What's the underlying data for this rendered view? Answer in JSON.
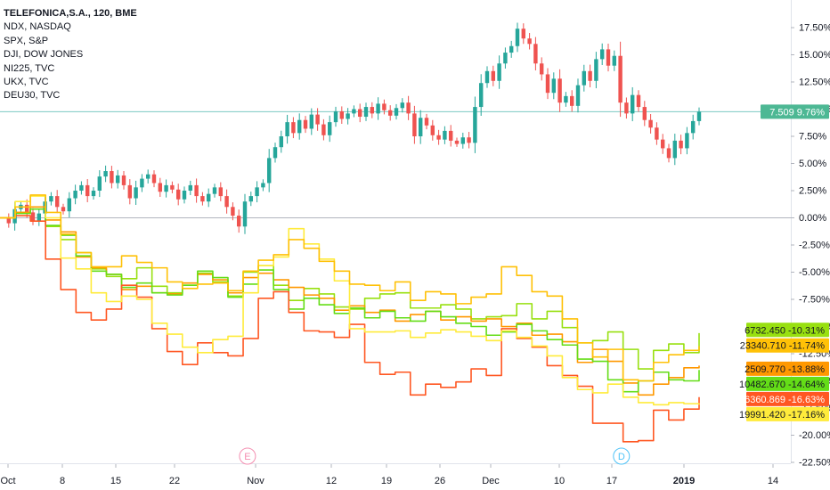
{
  "legend": {
    "title": "TELEFONICA,S.A., 120, BME",
    "items": [
      "NDX, NASDAQ",
      "SPX, S&P",
      "DJI, DOW JONES",
      "NI225, TVC",
      "UKX, TVC",
      "DEU30, TVC"
    ]
  },
  "markers": {
    "earnings": "E",
    "dividend": "D"
  },
  "colors": {
    "up": "#26a69a",
    "down": "#ef5350",
    "ndx": "#98e010",
    "spx": "#ff9800",
    "dji": "#64dd17",
    "ni225": "#ff5722",
    "ukx": "#ffeb3b",
    "deu30": "#ffc107",
    "last_line": "#26a69a",
    "zero_line": "#b2b5be"
  },
  "chart_data": {
    "type": "line",
    "x_ticks": [
      "Oct",
      "8",
      "15",
      "22",
      "Nov",
      "12",
      "19",
      "26",
      "Dec",
      "10",
      "17",
      "2019",
      "14"
    ],
    "x_tick_days": [
      0,
      7,
      14,
      21,
      31,
      42,
      49,
      56,
      61,
      70,
      77,
      92,
      105
    ],
    "y_ticks": [
      "17.50%",
      "15.00%",
      "12.50%",
      "10.00%",
      "7.50%",
      "5.00%",
      "2.50%",
      "0.00%",
      "-2.50%",
      "-5.00%",
      "-7.50%",
      "-10.00%",
      "-12.50%",
      "-15.00%",
      "-17.50%",
      "-20.00%",
      "-22.50%"
    ],
    "ylim": [
      -23.5,
      19.5
    ],
    "xlim": [
      0,
      108
    ],
    "last_value_label": {
      "price": "7.509",
      "pct": "9.76%",
      "value": 9.76
    },
    "candles": {
      "name": "TELEFONICA,S.A.",
      "x_start": 0,
      "x_end": 94,
      "closes": [
        0,
        -0.5,
        0.8,
        1.2,
        0.5,
        -0.3,
        0.4,
        1.5,
        2.0,
        1.0,
        0.6,
        1.8,
        2.5,
        3.0,
        2.0,
        2.5,
        3.8,
        4.3,
        3.2,
        3.9,
        3.0,
        1.8,
        2.8,
        3.6,
        4.0,
        3.2,
        2.4,
        3.0,
        2.6,
        1.7,
        2.5,
        3.0,
        2.0,
        1.5,
        2.2,
        2.8,
        2.0,
        1.0,
        0.2,
        -0.8,
        1.5,
        2.0,
        2.8,
        3.2,
        5.5,
        6.5,
        7.5,
        8.8,
        7.8,
        9.0,
        8.2,
        9.5,
        8.6,
        7.6,
        8.8,
        9.8,
        9.1,
        9.6,
        10.0,
        9.3,
        10.2,
        9.6,
        10.5,
        9.9,
        9.4,
        10.1,
        10.6,
        9.6,
        7.5,
        9.2,
        8.5,
        7.6,
        7.2,
        8.0,
        7.1,
        6.8,
        7.4,
        6.9,
        10.2,
        12.4,
        13.5,
        12.6,
        14.2,
        15.2,
        15.8,
        17.4,
        16.5,
        16.0,
        14.2,
        13.2,
        11.5,
        12.8,
        10.6,
        11.2,
        10.3,
        12.2,
        13.5,
        12.6,
        14.6,
        15.5,
        14.0,
        14.9,
        10.6,
        9.6,
        11.3,
        10.2,
        9.0,
        8.3,
        7.2,
        6.4,
        5.5,
        7.1,
        6.4,
        7.8,
        8.9,
        9.76
      ]
    },
    "series": [
      {
        "name": "NDX, NASDAQ",
        "key": "ndx",
        "last_value": "6732.450",
        "last_pct": "-10.31%",
        "pct": -10.31,
        "values": [
          0,
          0.5,
          1,
          -0.8,
          -2,
          -3.2,
          -4.7,
          -5.4,
          -5.6,
          -4.6,
          -6.3,
          -6.9,
          -6.2,
          -5.1,
          -5.9,
          -7.2,
          -5.0,
          -4.4,
          -6.2,
          -7.6,
          -6.5,
          -7.0,
          -8.2,
          -8.4,
          -7.4,
          -7.0,
          -6.9,
          -8.3,
          -8.3,
          -8.0,
          -8.4,
          -9.3,
          -9.1,
          -9.0,
          -7.9,
          -9.3,
          -8.6,
          -10.1,
          -11.5,
          -11.3,
          -10.5,
          -12.1,
          -13.9,
          -12.2,
          -11.6,
          -12.4,
          -10.6
        ]
      },
      {
        "name": "SPX, S&P",
        "key": "spx",
        "last_value": "2509.770",
        "last_pct": "-13.88%",
        "pct": -13.88,
        "values": [
          0,
          0.5,
          1,
          -0.2,
          -1.3,
          -3.6,
          -4.6,
          -5.2,
          -6.6,
          -6.3,
          -6.9,
          -7.0,
          -6.0,
          -5.2,
          -5.7,
          -6.9,
          -5.5,
          -5.1,
          -5.7,
          -6.4,
          -7.1,
          -7.4,
          -8.5,
          -8.1,
          -8.7,
          -8.5,
          -9.5,
          -8.9,
          -8.6,
          -9.4,
          -9.1,
          -9.5,
          -9.3,
          -10.0,
          -9.7,
          -10.8,
          -10.7,
          -11.4,
          -13.3,
          -12.1,
          -13.2,
          -15.2,
          -16.3,
          -15.3,
          -14.7,
          -13.8,
          -13.6
        ]
      },
      {
        "name": "DJI, DOW JONES",
        "key": "dji",
        "last_value": "10482.670",
        "last_pct": "-14.64%",
        "pct": -14.64,
        "values": [
          0,
          0.4,
          0.8,
          -0.7,
          -1.6,
          -3.5,
          -4.9,
          -5.2,
          -6.4,
          -6.0,
          -6.9,
          -7.1,
          -6.2,
          -4.9,
          -5.5,
          -7.3,
          -6.1,
          -4.8,
          -6.6,
          -8.4,
          -7.4,
          -8.0,
          -8.8,
          -8.3,
          -9.2,
          -8.6,
          -9.2,
          -9.5,
          -8.6,
          -9.1,
          -9.7,
          -10.0,
          -10.8,
          -10.5,
          -9.8,
          -10.4,
          -11.2,
          -11.7,
          -13.0,
          -13.2,
          -14.9,
          -16.0,
          -15.0,
          -14.2,
          -14.9,
          -15.0,
          -14.0
        ]
      },
      {
        "name": "NI225, TVC",
        "key": "ni225",
        "last_value": "6360.869",
        "last_pct": "-16.63%",
        "pct": -16.63,
        "values": [
          0,
          0.2,
          -0.3,
          -3.8,
          -6.6,
          -8.7,
          -9.4,
          -8.4,
          -6.2,
          -7.3,
          -10.2,
          -12.3,
          -13.5,
          -11.5,
          -12.4,
          -12.7,
          -11.1,
          -7.4,
          -6.8,
          -8.7,
          -10.4,
          -10.5,
          -11.0,
          -9.8,
          -13.3,
          -14.4,
          -14.2,
          -16.3,
          -15.3,
          -15.6,
          -15.1,
          -13.9,
          -14.5,
          -10.2,
          -11.1,
          -11.9,
          -13.6,
          -14.5,
          -15.5,
          -18.9,
          -18.9,
          -20.6,
          -20.5,
          -17.7,
          -18.6,
          -17.6,
          -16.5
        ]
      },
      {
        "name": "UKX, TVC",
        "key": "ukx",
        "last_value": "19991.420",
        "last_pct": "-17.16%",
        "pct": -17.16,
        "values": [
          0,
          1.5,
          2.0,
          0.0,
          -3.7,
          -4.7,
          -6.9,
          -7.7,
          -7.2,
          -7.5,
          -9.7,
          -10.7,
          -11.9,
          -12.4,
          -11.2,
          -10.9,
          -6.9,
          -4.4,
          -3.6,
          -1.0,
          -2.4,
          -3.8,
          -5.8,
          -10.2,
          -10.5,
          -10.5,
          -10.4,
          -11.0,
          -10.6,
          -10.3,
          -10.5,
          -10.9,
          -11.3,
          -10.4,
          -11.0,
          -11.8,
          -12.7,
          -14.7,
          -15.8,
          -16.1,
          -15.3,
          -16.5,
          -17.0,
          -17.2,
          -17.0,
          -17.1,
          -17.2
        ]
      },
      {
        "name": "DEU30, TVC",
        "key": "deu30",
        "last_value": "23340.710",
        "last_pct": "-11.74%",
        "pct": -11.74,
        "values": [
          0,
          1.0,
          2.1,
          0.5,
          -1.5,
          -3.2,
          -4.5,
          -4.5,
          -3.5,
          -4.1,
          -4.6,
          -5.9,
          -6.5,
          -6.1,
          -6.0,
          -6.7,
          -4.9,
          -3.9,
          -3.4,
          -2.0,
          -2.8,
          -4.0,
          -4.9,
          -6.1,
          -6.2,
          -6.7,
          -5.9,
          -7.6,
          -6.8,
          -7.0,
          -7.9,
          -7.3,
          -7.0,
          -4.5,
          -5.3,
          -6.8,
          -7.2,
          -9.3,
          -11.5,
          -12.8,
          -12.1,
          -14.9,
          -15.0,
          -13.3,
          -12.6,
          -12.2,
          -11.8
        ]
      }
    ],
    "event_markers": [
      {
        "label": "E",
        "day": 30
      },
      {
        "label": "D",
        "day": 79
      }
    ]
  }
}
